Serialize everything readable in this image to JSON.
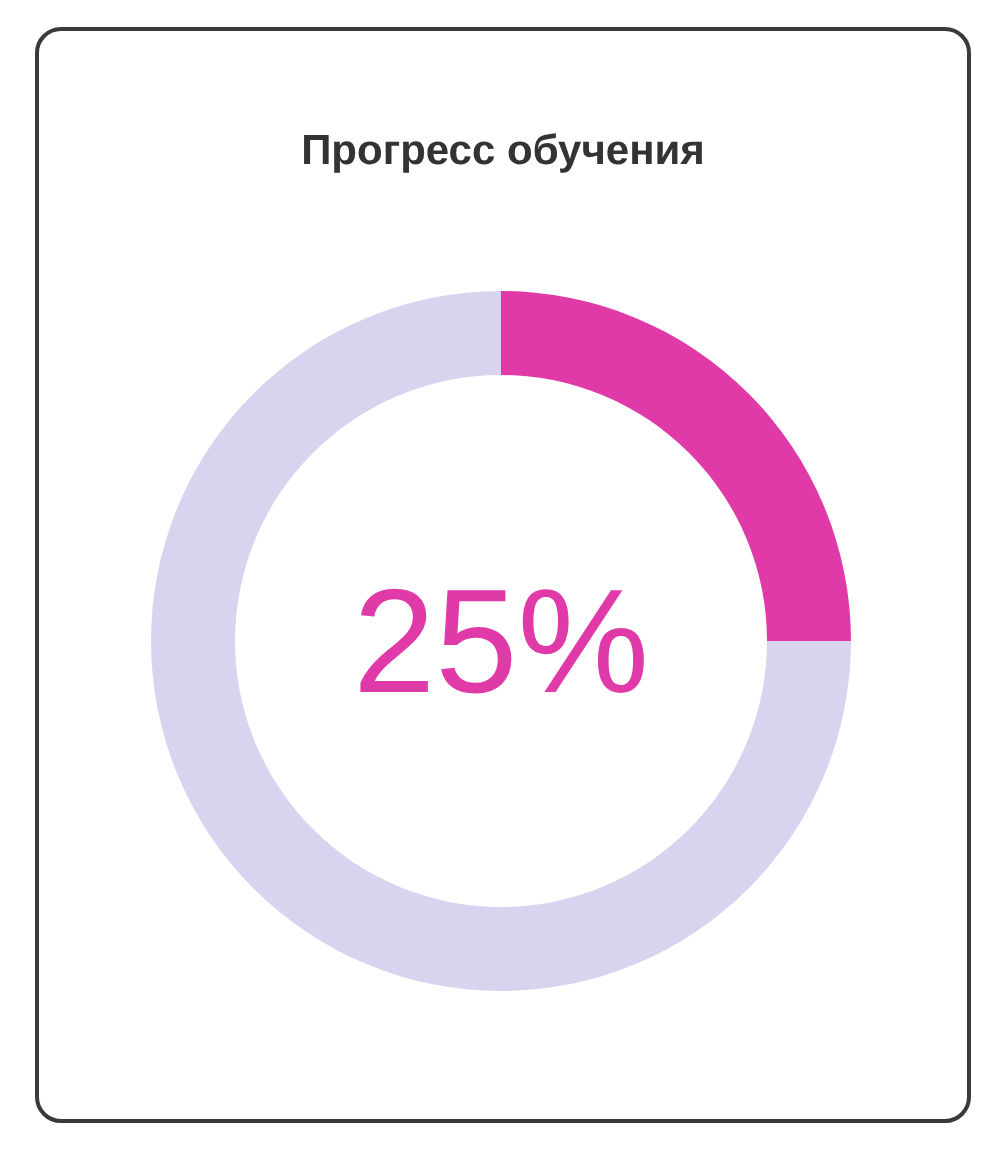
{
  "chart_data": {
    "type": "donut",
    "title": "Прогресс обучения",
    "categories": [
      null,
      null
    ],
    "values": [
      25,
      75
    ],
    "colors": [
      "#e03aa8",
      "#d8d3ee"
    ],
    "value_labels": [
      "25%",
      null
    ]
  }
}
